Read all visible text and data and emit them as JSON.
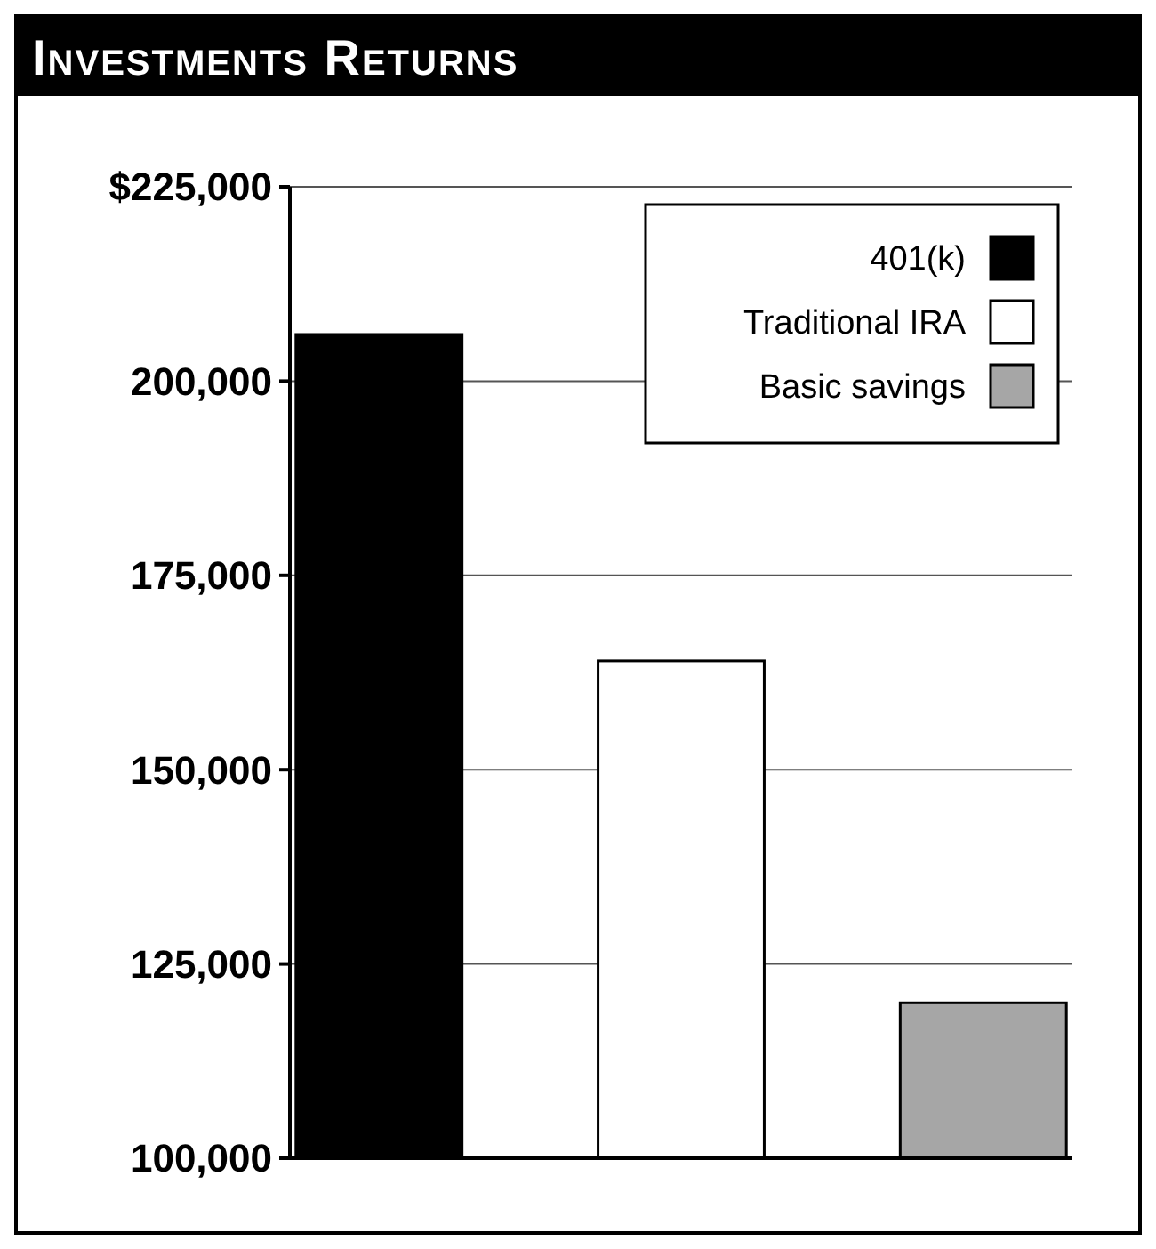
{
  "chart_data": {
    "type": "bar",
    "title": "Investments Returns",
    "categories": [
      null,
      null,
      null
    ],
    "series": [
      {
        "name": "401(k)",
        "color": "#000000",
        "values": [
          206000,
          null,
          null
        ]
      },
      {
        "name": "Traditional IRA",
        "color": "#ffffff",
        "values": [
          null,
          164000,
          null
        ]
      },
      {
        "name": "Basic savings",
        "color": "#a6a6a6",
        "values": [
          null,
          null,
          120000
        ]
      }
    ],
    "ylim": [
      100000,
      225000
    ],
    "yticks": [
      {
        "value": 100000,
        "label": "100,000"
      },
      {
        "value": 125000,
        "label": "125,000"
      },
      {
        "value": 150000,
        "label": "150,000"
      },
      {
        "value": 175000,
        "label": "175,000"
      },
      {
        "value": 200000,
        "label": "200,000"
      },
      {
        "value": 225000,
        "label": "$225,000"
      }
    ],
    "grid": "y",
    "legend": "top right"
  }
}
